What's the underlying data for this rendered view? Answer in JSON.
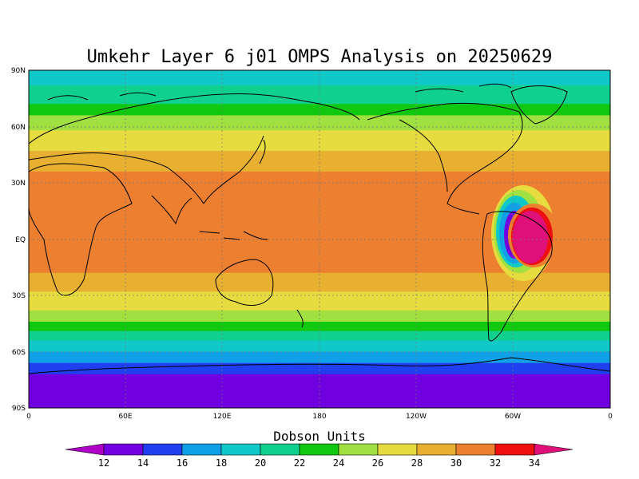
{
  "title": "Umkehr Layer 6 j01 OMPS Analysis on 20250629",
  "colorbar": {
    "title": "Dobson Units",
    "levels": [
      "12",
      "14",
      "16",
      "18",
      "20",
      "22",
      "24",
      "26",
      "28",
      "30",
      "32",
      "34"
    ],
    "colors": [
      "#b000c8",
      "#7000e0",
      "#2040f0",
      "#10a0e8",
      "#10c8c8",
      "#10d090",
      "#10c810",
      "#a0e040",
      "#e6dc40",
      "#e8b030",
      "#ec8030",
      "#ee1010",
      "#e0107a"
    ]
  },
  "axes": {
    "x_ticks": [
      "0",
      "60E",
      "120E",
      "180",
      "120W",
      "60W",
      "0"
    ],
    "y_ticks": [
      "90N",
      "60N",
      "30N",
      "EQ",
      "30S",
      "60S",
      "90S"
    ]
  },
  "field_bands": [
    {
      "lat_top": 90,
      "lat_bottom": 82,
      "value_class": 18
    },
    {
      "lat_top": 82,
      "lat_bottom": 72,
      "value_class": 20
    },
    {
      "lat_top": 72,
      "lat_bottom": 66,
      "value_class": 22
    },
    {
      "lat_top": 66,
      "lat_bottom": 58,
      "value_class": 24
    },
    {
      "lat_top": 58,
      "lat_bottom": 47,
      "value_class": 26
    },
    {
      "lat_top": 47,
      "lat_bottom": 36,
      "value_class": 28
    },
    {
      "lat_top": 36,
      "lat_bottom": 28,
      "value_class": 30
    },
    {
      "lat_top": 28,
      "lat_bottom": 15,
      "value_class": 30
    },
    {
      "lat_top": 15,
      "lat_bottom": -8,
      "value_class": 30
    },
    {
      "lat_top": -8,
      "lat_bottom": -18,
      "value_class": 30
    },
    {
      "lat_top": -18,
      "lat_bottom": -28,
      "value_class": 28
    },
    {
      "lat_top": -28,
      "lat_bottom": -38,
      "value_class": 26
    },
    {
      "lat_top": -38,
      "lat_bottom": -44,
      "value_class": 24
    },
    {
      "lat_top": -44,
      "lat_bottom": -49,
      "value_class": 22
    },
    {
      "lat_top": -49,
      "lat_bottom": -54,
      "value_class": 20
    },
    {
      "lat_top": -54,
      "lat_bottom": -60,
      "value_class": 18
    },
    {
      "lat_top": -60,
      "lat_bottom": -66,
      "value_class": 16
    },
    {
      "lat_top": -66,
      "lat_bottom": -72,
      "value_class": 14
    },
    {
      "lat_top": -72,
      "lat_bottom": -90,
      "value_class": 12
    }
  ]
}
